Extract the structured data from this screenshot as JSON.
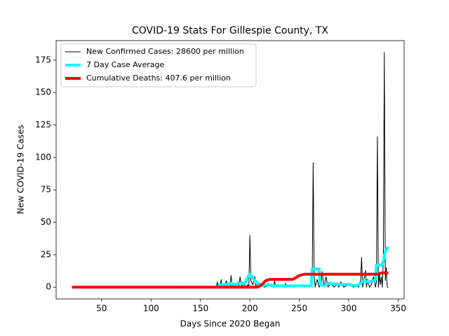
{
  "chart_data": {
    "type": "line",
    "title": "COVID-19 Stats For Gillespie County, TX",
    "xlabel": "Days Since 2020 Began",
    "ylabel": "New COVID-19 Cases",
    "xlim": [
      4,
      356
    ],
    "ylim": [
      -9.05,
      190.05
    ],
    "xticks": [
      50,
      100,
      150,
      200,
      250,
      300,
      350
    ],
    "yticks": [
      0,
      25,
      50,
      75,
      100,
      125,
      150,
      175
    ],
    "legend": "upper left",
    "series": [
      {
        "name": "New Confirmed Cases: 28600 per million",
        "color": "black",
        "width": 1,
        "x": [
          20,
          125,
          126,
          127,
          166,
          167,
          168,
          170,
          171,
          172,
          174,
          175,
          176,
          178,
          180,
          181,
          182,
          184,
          186,
          188,
          189,
          190,
          192,
          194,
          196,
          198,
          199,
          200,
          201,
          203,
          205,
          206,
          208,
          210,
          212,
          215,
          220,
          224,
          225,
          226,
          230,
          235,
          236,
          237,
          240,
          245,
          250,
          255,
          258,
          260,
          262,
          263,
          264,
          265,
          266,
          268,
          270,
          272,
          273,
          275,
          276,
          277,
          279,
          282,
          285,
          288,
          290,
          292,
          295,
          300,
          305,
          308,
          310,
          311,
          312,
          313,
          314,
          315,
          317,
          318,
          319,
          321,
          323,
          325,
          327,
          328,
          329,
          330,
          331,
          332,
          333,
          334,
          335,
          336,
          337,
          338,
          339,
          340
        ],
        "values": [
          0,
          0,
          1,
          0,
          0,
          4,
          0,
          2,
          6,
          0,
          3,
          0,
          5,
          0,
          1,
          9,
          0,
          2,
          0,
          4,
          0,
          8,
          0,
          3,
          0,
          2,
          0,
          40,
          5,
          2,
          8,
          0,
          3,
          0,
          1,
          0,
          2,
          0,
          5,
          0,
          1,
          0,
          3,
          0,
          1,
          0,
          2,
          0,
          1,
          0,
          2,
          0,
          96,
          10,
          0,
          6,
          0,
          2,
          12,
          0,
          4,
          8,
          0,
          3,
          0,
          2,
          0,
          4,
          0,
          2,
          0,
          1,
          0,
          3,
          5,
          23,
          0,
          4,
          13,
          0,
          6,
          0,
          2,
          8,
          0,
          4,
          116,
          0,
          10,
          2,
          8,
          0,
          22,
          181,
          5,
          15,
          0,
          0
        ]
      },
      {
        "name": "7 Day Case Average",
        "color": "cyan",
        "width": 4,
        "x": [
          168,
          175,
          180,
          185,
          190,
          195,
          198,
          200,
          202,
          205,
          208,
          212,
          218,
          225,
          235,
          245,
          255,
          262,
          263,
          270,
          271,
          275,
          280,
          290,
          300,
          308,
          312,
          315,
          320,
          325,
          327,
          328,
          333,
          335,
          337,
          340
        ],
        "values": [
          2,
          2,
          3,
          2,
          3,
          3,
          8,
          10,
          8,
          5,
          3,
          1,
          2,
          1,
          1,
          1,
          1,
          1,
          14,
          14,
          2,
          1,
          3,
          2,
          2,
          1,
          3,
          5,
          4,
          5,
          6,
          17,
          17,
          20,
          28,
          31
        ]
      },
      {
        "name": "Cumulative Deaths: 407.6 per million",
        "color": "red",
        "width": 4,
        "x": [
          20,
          205,
          208,
          212,
          216,
          220,
          243,
          246,
          250,
          255,
          300,
          330,
          333,
          340
        ],
        "values": [
          0,
          0,
          0,
          2,
          5,
          6,
          6,
          7,
          9,
          10,
          10,
          10,
          11,
          11
        ]
      }
    ]
  }
}
